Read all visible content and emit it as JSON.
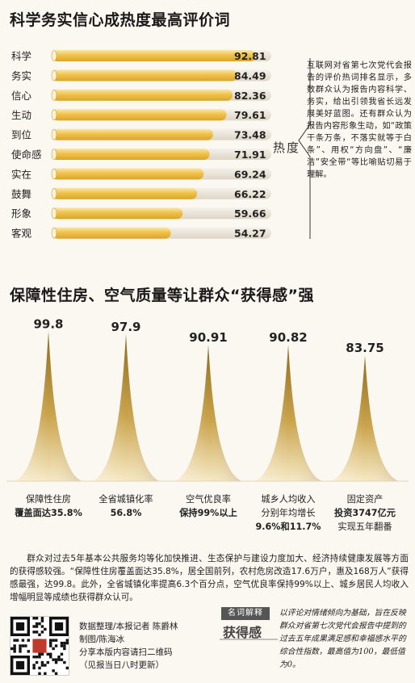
{
  "title1": "科学务实信心成热度最高评价词",
  "title2": "保障性住房、空气质量等让群众“获得感”强",
  "heat_label": "热度",
  "side_text": "互联网对省第七次党代会报告的评价热词排名显示，多数群众认为报告内容科学、务实，给出引领我省长远发展美好蓝图。还有群众认为报告内容形象生动，如“政策干条万条，不落实就等于白条”、用权“方向盘”、“廉洁”安全带“等比喻贴切易于理解。",
  "body_text": "群众对过去5年基本公共服务均等化加快推进、生态保护与建设力度加大、经济持续健康发展等方面的获得感较强。“保障性住房覆盖面达35.8%，居全国前列，农村危房改造17.6万户，惠及168万人”获得感最强，达99.8。此外，全省城镇化率提高6.3个百分点，空气优良率保持99%以上、城乡居民人均收入增幅明显等成绩也获得群众认可。",
  "credits": {
    "line1": "数据整理/本报记者  陈爵林",
    "line2": "制图/陈海冰",
    "line3": "分享本版内容请扫二维码",
    "line4": "（见报当日八时更新）"
  },
  "term": {
    "tag": "名词解释",
    "word": "获得感",
    "definition": "以评论对情绪倾向为基础，旨在反映群众对省第七次党代会报告中提到的过去五年成果满足感和幸福感水平的综合性指数，最高值为100，最低值为0。"
  },
  "colors": {
    "bar_fill": "#f0c24a",
    "bar_highlight": "#fbe7a8",
    "bar_track": "#e9e3d8",
    "peak_dark": "#a3812d",
    "peak_light": "#f6e8c3"
  },
  "chart_data": [
    {
      "type": "bar",
      "orientation": "horizontal",
      "categories": [
        "科学",
        "务实",
        "信心",
        "生动",
        "到位",
        "使命感",
        "实在",
        "鼓舞",
        "形象",
        "客观"
      ],
      "values": [
        92.81,
        84.49,
        82.36,
        79.61,
        73.48,
        71.91,
        69.24,
        66.22,
        59.66,
        54.27
      ],
      "value_labels": [
        "92.81",
        "84.49",
        "82.36",
        "79.61",
        "73.48",
        "71.91",
        "69.24",
        "66.22",
        "59.66",
        "54.27"
      ],
      "xlim": [
        0,
        100
      ]
    },
    {
      "type": "area",
      "shape": "peak",
      "categories": [
        {
          "line1": "保障性住房",
          "line2": "覆盖面达35.8%"
        },
        {
          "line1": "全省城镇化率",
          "line2": "56.8%"
        },
        {
          "line1": "空气优良率",
          "line2": "保持99%以上"
        },
        {
          "line1": "城乡人均收入",
          "line2": "分别年均增长",
          "line3": "9.6%和11.7%"
        },
        {
          "line1": "固定资产",
          "line2": "投资3747亿元",
          "line3": "实现五年翻番"
        }
      ],
      "values": [
        99.8,
        97.9,
        90.91,
        90.82,
        83.75
      ],
      "value_labels": [
        "99.8",
        "97.9",
        "90.91",
        "90.82",
        "83.75"
      ],
      "ylim": [
        0,
        100
      ]
    }
  ]
}
